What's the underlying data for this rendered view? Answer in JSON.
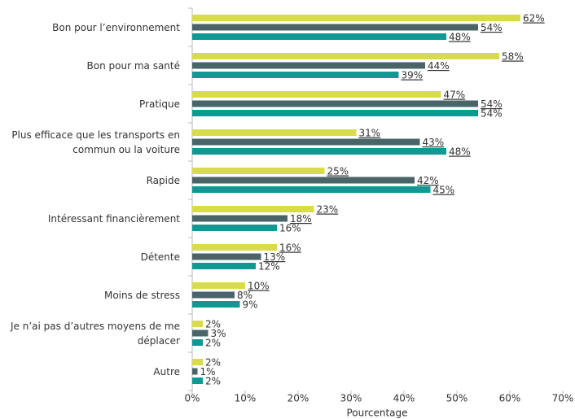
{
  "chart_data": {
    "type": "bar",
    "orientation": "horizontal",
    "categories": [
      "Bon pour l’environnement",
      "Bon pour ma santé",
      "Pratique",
      "Plus efficace que les transports en commun ou la voiture",
      "Rapide",
      "Intéressant financièrement",
      "Détente",
      "Moins de stress",
      "Je n’ai pas d’autres moyens de me déplacer",
      "Autre"
    ],
    "series": [
      {
        "color": "#d9dc4a",
        "values": [
          62,
          58,
          47,
          31,
          25,
          23,
          16,
          10,
          2,
          2
        ],
        "value_labels": [
          "62%",
          "58%",
          "47%",
          "31%",
          "25%",
          "23%",
          "16%",
          "10%",
          "2%",
          "2%"
        ],
        "label_colors": [
          "#3d8ec9",
          "#3d8ec9",
          "#e8487f",
          "#e8487f",
          "#e8487f",
          "#3d8ec9",
          "#3d8ec9",
          "#3d8ec9",
          "#333333",
          "#333333"
        ]
      },
      {
        "color": "#4a6468",
        "values": [
          54,
          44,
          54,
          43,
          42,
          18,
          13,
          8,
          3,
          1
        ],
        "value_labels": [
          "54%",
          "44%",
          "54%",
          "43%",
          "42%",
          "18%",
          "13%",
          "8%",
          "3%",
          "1%"
        ],
        "label_colors": [
          "#e8487f",
          "#e8487f",
          "#3d8ec9",
          "#3d8ec9",
          "#3d8ec9",
          "#e8487f",
          "#e8487f",
          "#333333",
          "#333333",
          "#333333"
        ]
      },
      {
        "color": "#0e9a93",
        "values": [
          48,
          39,
          54,
          48,
          45,
          16,
          12,
          9,
          2,
          2
        ],
        "value_labels": [
          "48%",
          "39%",
          "54%",
          "48%",
          "45%",
          "16%",
          "12%",
          "9%",
          "2%",
          "2%"
        ],
        "label_colors": [
          "#e8487f",
          "#e8487f",
          "#333333",
          "#3d8ec9",
          "#3d8ec9",
          "#333333",
          "#333333",
          "#333333",
          "#333333",
          "#333333"
        ]
      }
    ],
    "underline_colors": [
      "#3d8ec9",
      "#e8487f"
    ],
    "xlabel": "Pourcentage",
    "xlim": [
      0,
      70
    ],
    "xticks": [
      {
        "value": 0,
        "label": "0%"
      },
      {
        "value": 10,
        "label": "10%"
      },
      {
        "value": 20,
        "label": "20%"
      },
      {
        "value": 30,
        "label": "30%"
      },
      {
        "value": 40,
        "label": "40%"
      },
      {
        "value": 50,
        "label": "50%"
      },
      {
        "value": 60,
        "label": "60%"
      },
      {
        "value": 70,
        "label": "70%"
      }
    ],
    "grid": false
  }
}
